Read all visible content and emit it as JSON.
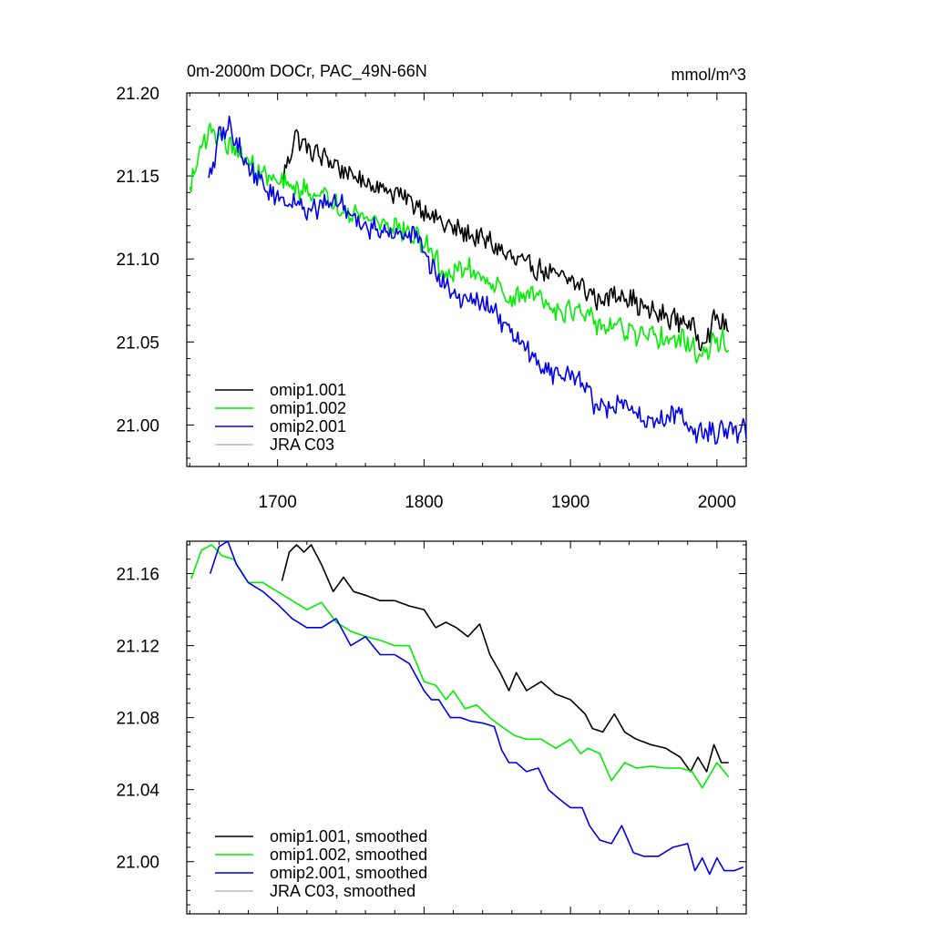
{
  "chart_data": [
    {
      "type": "line",
      "title": "0m-2000m DOCr, PAC_49N-66N",
      "units": "mmol/m^3",
      "xlim": [
        1638,
        2020
      ],
      "ylim": [
        20.975,
        21.2
      ],
      "x_ticks": [
        1700,
        1800,
        1900,
        2000
      ],
      "x_tick_labels": [
        "1700",
        "1800",
        "1900",
        "2000"
      ],
      "y_ticks": [
        21.0,
        21.05,
        21.1,
        21.15,
        21.2
      ],
      "y_tick_labels": [
        "21.00",
        "21.05",
        "21.10",
        "21.15",
        "21.20"
      ],
      "legend_position": "bottom-left",
      "noise": 0.0055,
      "series": [
        {
          "name": "omip1.001",
          "color": "#000000",
          "x": [
            1703,
            1712,
            1722,
            1735,
            1750,
            1765,
            1780,
            1800,
            1815,
            1830,
            1845,
            1860,
            1875,
            1890,
            1905,
            1920,
            1935,
            1950,
            1965,
            1980,
            1990,
            2000,
            2008
          ],
          "y": [
            21.145,
            21.175,
            21.165,
            21.16,
            21.15,
            21.145,
            21.14,
            21.13,
            21.12,
            21.115,
            21.11,
            21.1,
            21.095,
            21.09,
            21.085,
            21.075,
            21.08,
            21.07,
            21.065,
            21.062,
            21.05,
            21.065,
            21.057
          ]
        },
        {
          "name": "omip1.002",
          "color": "#00ee00",
          "x": [
            1640,
            1648,
            1655,
            1665,
            1680,
            1695,
            1710,
            1725,
            1740,
            1760,
            1780,
            1800,
            1815,
            1830,
            1845,
            1860,
            1875,
            1890,
            1905,
            1920,
            1935,
            1950,
            1965,
            1980,
            1990,
            2000,
            2008
          ],
          "y": [
            21.14,
            21.17,
            21.178,
            21.17,
            21.158,
            21.148,
            21.143,
            21.14,
            21.133,
            21.125,
            21.12,
            21.11,
            21.09,
            21.095,
            21.087,
            21.075,
            21.08,
            21.07,
            21.068,
            21.06,
            21.058,
            21.052,
            21.052,
            21.05,
            21.04,
            21.052,
            21.048
          ]
        },
        {
          "name": "omip2.001",
          "color": "#0000ee",
          "x": [
            1653,
            1660,
            1667,
            1680,
            1695,
            1710,
            1725,
            1740,
            1760,
            1780,
            1795,
            1810,
            1825,
            1840,
            1850,
            1860,
            1875,
            1890,
            1905,
            1915,
            1925,
            1935,
            1945,
            1960,
            1975,
            1985,
            1995,
            2005,
            2020
          ],
          "y": [
            21.145,
            21.173,
            21.18,
            21.155,
            21.14,
            21.133,
            21.13,
            21.135,
            21.12,
            21.115,
            21.115,
            21.088,
            21.078,
            21.074,
            21.065,
            21.055,
            21.04,
            21.03,
            21.03,
            21.015,
            21.008,
            21.015,
            21.005,
            21.002,
            21.008,
            20.995,
            20.996,
            20.995,
            20.998
          ]
        },
        {
          "name": "JRA C03",
          "color": "#bbbbbb",
          "x": [],
          "y": []
        }
      ]
    },
    {
      "type": "line",
      "title": "",
      "xlim": [
        1638,
        2020
      ],
      "ylim": [
        20.971,
        21.178
      ],
      "x_ticks": [
        1700,
        1800,
        1900,
        2000
      ],
      "x_tick_labels": [
        "",
        "",
        "",
        ""
      ],
      "y_ticks": [
        21.0,
        21.04,
        21.08,
        21.12,
        21.16
      ],
      "y_tick_labels": [
        "21.00",
        "21.04",
        "21.08",
        "21.12",
        "21.16"
      ],
      "legend_position": "bottom-left",
      "noise": 0,
      "series": [
        {
          "name": "omip1.001, smoothed",
          "color": "#000000",
          "x": [
            1703,
            1708,
            1713,
            1718,
            1723,
            1730,
            1738,
            1745,
            1752,
            1760,
            1770,
            1780,
            1790,
            1800,
            1808,
            1815,
            1822,
            1830,
            1838,
            1845,
            1852,
            1858,
            1863,
            1870,
            1880,
            1890,
            1900,
            1910,
            1915,
            1922,
            1930,
            1937,
            1945,
            1955,
            1965,
            1975,
            1982,
            1987,
            1993,
            1998,
            2003,
            2008
          ],
          "y": [
            21.156,
            21.172,
            21.176,
            21.172,
            21.176,
            21.165,
            21.15,
            21.158,
            21.15,
            21.148,
            21.145,
            21.145,
            21.142,
            21.14,
            21.13,
            21.133,
            21.13,
            21.125,
            21.132,
            21.115,
            21.105,
            21.095,
            21.105,
            21.095,
            21.1,
            21.093,
            21.09,
            21.082,
            21.074,
            21.072,
            21.082,
            21.072,
            21.068,
            21.065,
            21.063,
            21.058,
            21.05,
            21.058,
            21.05,
            21.065,
            21.055,
            21.055
          ]
        },
        {
          "name": "omip1.002, smoothed",
          "color": "#00ee00",
          "x": [
            1641,
            1648,
            1655,
            1662,
            1670,
            1680,
            1690,
            1700,
            1710,
            1720,
            1730,
            1740,
            1750,
            1760,
            1770,
            1780,
            1790,
            1800,
            1808,
            1815,
            1820,
            1828,
            1836,
            1845,
            1853,
            1862,
            1870,
            1880,
            1890,
            1900,
            1907,
            1912,
            1920,
            1928,
            1937,
            1945,
            1955,
            1965,
            1975,
            1983,
            1990,
            2000,
            2008
          ],
          "y": [
            21.157,
            21.173,
            21.176,
            21.17,
            21.168,
            21.155,
            21.155,
            21.15,
            21.145,
            21.14,
            21.144,
            21.133,
            21.128,
            21.125,
            21.123,
            21.12,
            21.12,
            21.1,
            21.098,
            21.09,
            21.095,
            21.085,
            21.087,
            21.08,
            21.075,
            21.07,
            21.068,
            21.068,
            21.063,
            21.068,
            21.06,
            21.063,
            21.06,
            21.045,
            21.055,
            21.052,
            21.053,
            21.052,
            21.052,
            21.05,
            21.041,
            21.055,
            21.047
          ]
        },
        {
          "name": "omip2.001, smoothed",
          "color": "#0000ee",
          "x": [
            1654,
            1660,
            1666,
            1672,
            1680,
            1690,
            1700,
            1710,
            1720,
            1730,
            1740,
            1750,
            1760,
            1770,
            1780,
            1790,
            1800,
            1805,
            1810,
            1818,
            1825,
            1832,
            1840,
            1848,
            1853,
            1858,
            1863,
            1870,
            1878,
            1885,
            1892,
            1900,
            1908,
            1913,
            1920,
            1928,
            1935,
            1943,
            1950,
            1960,
            1970,
            1980,
            1985,
            1990,
            1995,
            2000,
            2005,
            2012,
            2018
          ],
          "y": [
            21.16,
            21.175,
            21.178,
            21.165,
            21.155,
            21.15,
            21.143,
            21.135,
            21.13,
            21.13,
            21.135,
            21.12,
            21.125,
            21.115,
            21.115,
            21.11,
            21.095,
            21.09,
            21.09,
            21.08,
            21.08,
            21.078,
            21.077,
            21.075,
            21.062,
            21.055,
            21.055,
            21.05,
            21.052,
            21.04,
            21.035,
            21.03,
            21.03,
            21.02,
            21.012,
            21.01,
            21.02,
            21.005,
            21.003,
            21.003,
            21.008,
            21.01,
            20.995,
            21.002,
            20.993,
            21.002,
            20.995,
            20.995,
            20.997
          ]
        },
        {
          "name": "JRA C03, smoothed",
          "color": "#bbbbbb",
          "x": [],
          "y": []
        }
      ]
    }
  ]
}
